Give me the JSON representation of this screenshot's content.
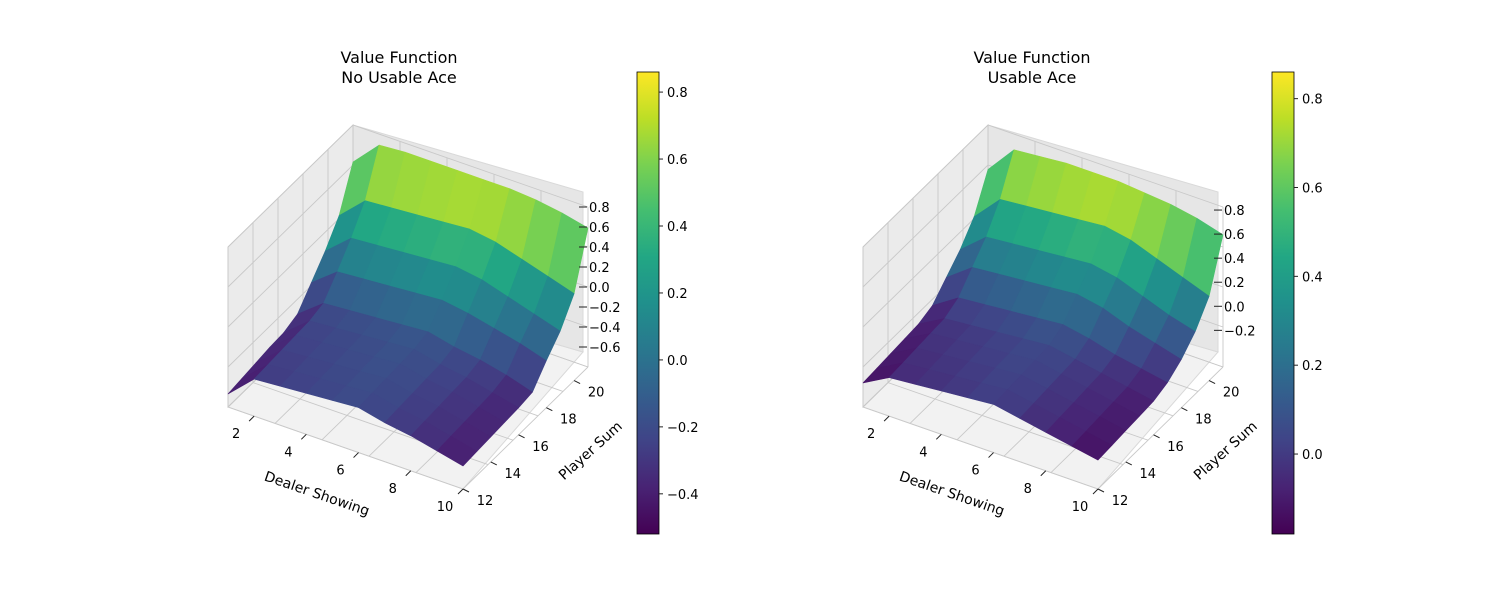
{
  "chart_data": [
    {
      "type": "surface3d",
      "title": "Value Function\nNo Usable Ace",
      "title_lines": [
        "Value Function",
        "No Usable Ace"
      ],
      "xlabel": "Dealer Showing",
      "ylabel": "Player Sum",
      "x": [
        1,
        2,
        3,
        4,
        5,
        6,
        7,
        8,
        9,
        10
      ],
      "y": [
        12,
        13,
        14,
        15,
        16,
        17,
        18,
        19,
        20,
        21
      ],
      "xticks": [
        "2",
        "4",
        "6",
        "8",
        "10"
      ],
      "yticks": [
        "12",
        "14",
        "16",
        "18",
        "20"
      ],
      "zticks": [
        "−0.6",
        "−0.4",
        "−0.2",
        "0.0",
        "0.2",
        "0.4",
        "0.6",
        "0.8"
      ],
      "zlim": [
        -0.65,
        0.95
      ],
      "colorbar": {
        "min": -0.52,
        "max": 0.86,
        "ticks": [
          -0.4,
          -0.2,
          0.0,
          0.2,
          0.4,
          0.6,
          0.8
        ],
        "tick_labels": [
          "−0.4",
          "−0.2",
          "0.0",
          "0.2",
          "0.4",
          "0.6",
          "0.8"
        ]
      },
      "colormap": "viridis",
      "z": [
        [
          -0.52,
          -0.28,
          -0.26,
          -0.24,
          -0.22,
          -0.2,
          -0.26,
          -0.3,
          -0.36,
          -0.42
        ],
        [
          -0.5,
          -0.27,
          -0.25,
          -0.23,
          -0.21,
          -0.19,
          -0.25,
          -0.29,
          -0.35,
          -0.41
        ],
        [
          -0.48,
          -0.26,
          -0.24,
          -0.22,
          -0.2,
          -0.18,
          -0.24,
          -0.28,
          -0.34,
          -0.4
        ],
        [
          -0.46,
          -0.25,
          -0.23,
          -0.21,
          -0.19,
          -0.17,
          -0.23,
          -0.27,
          -0.33,
          -0.39
        ],
        [
          -0.45,
          -0.24,
          -0.22,
          -0.2,
          -0.18,
          -0.16,
          -0.22,
          -0.26,
          -0.32,
          -0.38
        ],
        [
          -0.4,
          -0.2,
          -0.18,
          -0.16,
          -0.14,
          -0.12,
          -0.18,
          -0.22,
          -0.28,
          -0.36
        ],
        [
          -0.22,
          -0.02,
          0.0,
          0.02,
          0.04,
          0.06,
          0.02,
          -0.04,
          -0.1,
          -0.18
        ],
        [
          -0.04,
          0.18,
          0.2,
          0.22,
          0.24,
          0.26,
          0.22,
          0.14,
          0.06,
          -0.02
        ],
        [
          0.18,
          0.42,
          0.44,
          0.46,
          0.48,
          0.5,
          0.46,
          0.38,
          0.3,
          0.22
        ],
        [
          0.58,
          0.84,
          0.86,
          0.86,
          0.86,
          0.86,
          0.86,
          0.84,
          0.8,
          0.74
        ]
      ]
    },
    {
      "type": "surface3d",
      "title": "Value Function\nUsable Ace",
      "title_lines": [
        "Value Function",
        "Usable Ace"
      ],
      "xlabel": "Dealer Showing",
      "ylabel": "Player Sum",
      "x": [
        1,
        2,
        3,
        4,
        5,
        6,
        7,
        8,
        9,
        10
      ],
      "y": [
        12,
        13,
        14,
        15,
        16,
        17,
        18,
        19,
        20,
        21
      ],
      "xticks": [
        "2",
        "4",
        "6",
        "8",
        "10"
      ],
      "yticks": [
        "12",
        "14",
        "16",
        "18",
        "20"
      ],
      "zticks": [
        "−0.2",
        "0.0",
        "0.2",
        "0.4",
        "0.6",
        "0.8"
      ],
      "zlim": [
        -0.38,
        0.95
      ],
      "colorbar": {
        "min": -0.18,
        "max": 0.86,
        "ticks": [
          0.0,
          0.2,
          0.4,
          0.6,
          0.8
        ],
        "tick_labels": [
          "0.0",
          "0.2",
          "0.4",
          "0.6",
          "0.8"
        ]
      },
      "colormap": "viridis",
      "z": [
        [
          -0.18,
          -0.06,
          -0.04,
          -0.02,
          0.0,
          0.02,
          -0.02,
          -0.06,
          -0.1,
          -0.14
        ],
        [
          -0.17,
          -0.05,
          -0.03,
          -0.01,
          0.01,
          0.03,
          -0.01,
          -0.05,
          -0.09,
          -0.13
        ],
        [
          -0.16,
          -0.04,
          -0.02,
          0.0,
          0.02,
          0.04,
          0.0,
          -0.04,
          -0.08,
          -0.12
        ],
        [
          -0.15,
          -0.03,
          -0.01,
          0.01,
          0.03,
          0.05,
          0.01,
          -0.03,
          -0.07,
          -0.11
        ],
        [
          -0.14,
          -0.02,
          0.0,
          0.02,
          0.04,
          0.06,
          0.02,
          -0.02,
          -0.06,
          -0.1
        ],
        [
          -0.1,
          0.04,
          0.06,
          0.08,
          0.1,
          0.12,
          0.08,
          0.02,
          -0.02,
          -0.06
        ],
        [
          0.02,
          0.18,
          0.2,
          0.22,
          0.24,
          0.26,
          0.22,
          0.14,
          0.08,
          0.02
        ],
        [
          0.14,
          0.32,
          0.34,
          0.36,
          0.38,
          0.4,
          0.36,
          0.28,
          0.2,
          0.14
        ],
        [
          0.3,
          0.52,
          0.54,
          0.56,
          0.58,
          0.6,
          0.56,
          0.48,
          0.4,
          0.32
        ],
        [
          0.58,
          0.82,
          0.84,
          0.86,
          0.86,
          0.86,
          0.84,
          0.82,
          0.78,
          0.72
        ]
      ]
    }
  ]
}
